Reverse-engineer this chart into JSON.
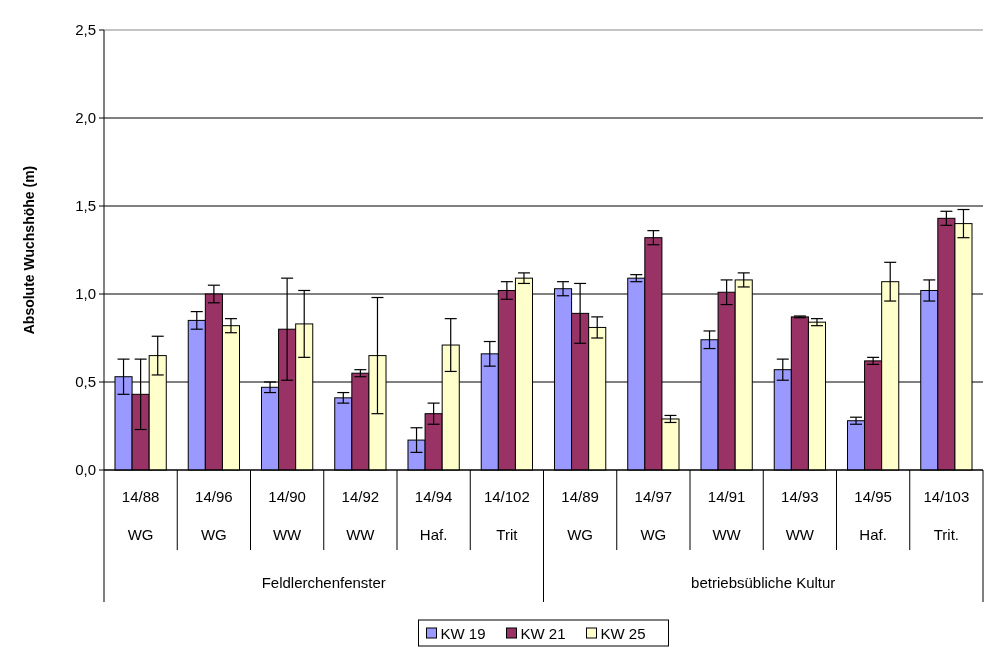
{
  "chart_data": {
    "type": "bar",
    "ylabel": "Absolute Wuchshöhe (m)",
    "categories": [
      "14/88\nWG",
      "14/96\nWG",
      "14/90\nWW",
      "14/92\nWW",
      "14/94\nHaf.",
      "14/102\nTrit",
      "14/89\nWG",
      "14/97\nWG",
      "14/91\nWW",
      "14/93\nWW",
      "14/95\nHaf.",
      "14/103\nTrit."
    ],
    "annotations": [
      "Feldlerchenfenster",
      "betriebsübliche Kultur"
    ],
    "series": [
      {
        "name": "KW 19",
        "color": "#9999ff",
        "values": [
          0.53,
          0.85,
          0.47,
          0.41,
          0.17,
          0.66,
          1.03,
          1.09,
          0.74,
          0.57,
          0.28,
          1.02
        ],
        "errors": [
          0.1,
          0.05,
          0.03,
          0.03,
          0.07,
          0.07,
          0.04,
          0.02,
          0.05,
          0.06,
          0.02,
          0.06
        ]
      },
      {
        "name": "KW 21",
        "color": "#993366",
        "values": [
          0.43,
          1.0,
          0.8,
          0.55,
          0.32,
          1.02,
          0.89,
          1.32,
          1.01,
          0.87,
          0.62,
          1.43
        ],
        "errors": [
          0.2,
          0.05,
          0.29,
          0.02,
          0.06,
          0.05,
          0.17,
          0.04,
          0.07,
          0.005,
          0.02,
          0.04
        ]
      },
      {
        "name": "KW 25",
        "color": "#ffffcc",
        "values": [
          0.65,
          0.82,
          0.83,
          0.65,
          0.71,
          1.09,
          0.81,
          0.29,
          1.08,
          0.84,
          1.07,
          1.4
        ],
        "errors": [
          0.11,
          0.04,
          0.19,
          0.33,
          0.15,
          0.03,
          0.06,
          0.02,
          0.04,
          0.02,
          0.11,
          0.08
        ]
      }
    ],
    "ylim": [
      0,
      2.5
    ],
    "yticks": [
      {
        "value": 0,
        "label": "0,0"
      },
      {
        "value": 0.5,
        "label": "0,5"
      },
      {
        "value": 1,
        "label": "1,0"
      },
      {
        "value": 1.5,
        "label": "1,5"
      },
      {
        "value": 2,
        "label": "2,0"
      },
      {
        "value": 2.5,
        "label": "2,5"
      }
    ],
    "grid": "y",
    "legend": "bottom"
  }
}
